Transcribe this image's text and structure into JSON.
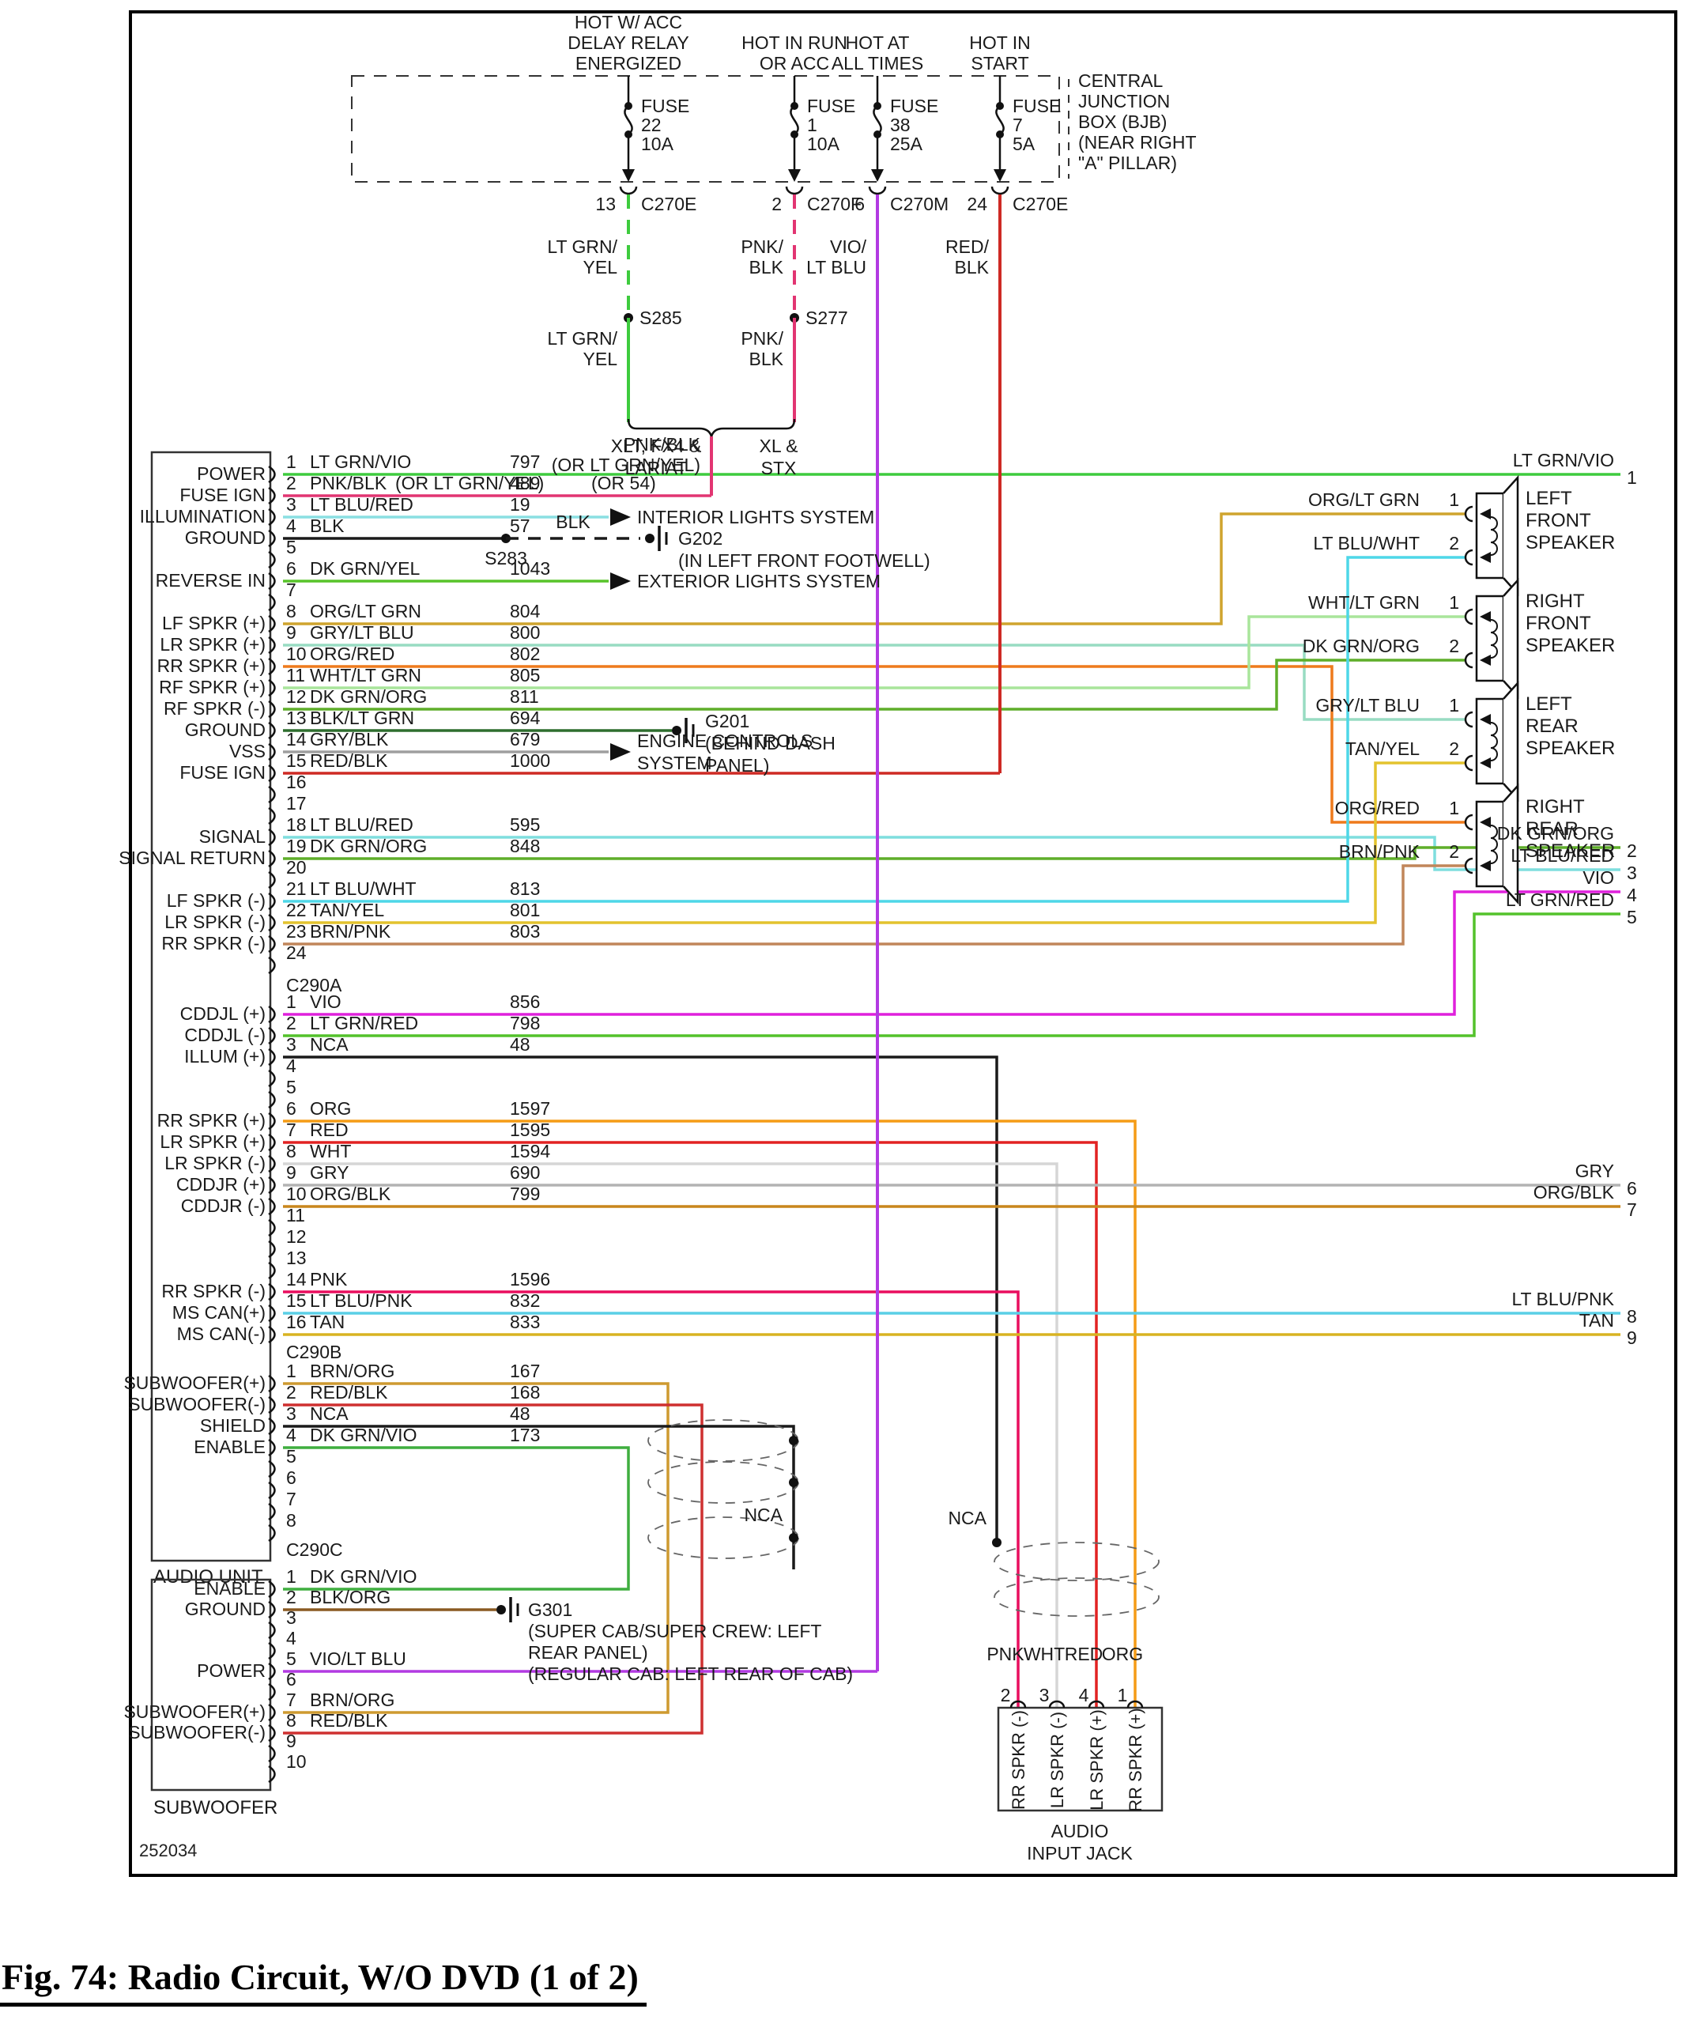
{
  "caption": "Fig. 74: Radio Circuit, W/O DVD (1 of 2)",
  "doc_number": "252034",
  "power_sources": [
    {
      "header": [
        "HOT W/ ACC",
        "DELAY RELAY",
        "ENERGIZED"
      ],
      "fuse": [
        "FUSE",
        "22",
        "10A"
      ],
      "pin": "13",
      "connector": "C270E",
      "wire_label": [
        "LT GRN/",
        "YEL"
      ],
      "splice": "S285",
      "branch_label": [
        "XLT, FX4 &",
        "LARIAT"
      ],
      "color": "#3ecb3e",
      "dashed": true
    },
    {
      "header": [
        "HOT IN RUN",
        "OR ACC"
      ],
      "fuse": [
        "FUSE",
        "1",
        "10A"
      ],
      "pin": "2",
      "connector": "C270F",
      "wire_label": [
        "PNK/",
        "BLK"
      ],
      "splice": "S277",
      "branch_label": [
        "XL &",
        "STX"
      ],
      "color": "#e23572",
      "dashed": true
    },
    {
      "header": [
        "HOT AT",
        "ALL TIMES"
      ],
      "fuse": [
        "FUSE",
        "38",
        "25A"
      ],
      "pin": "6",
      "connector": "C270M",
      "wire_label": [
        "VIO/",
        "LT BLU"
      ],
      "color": "#b23ae2",
      "dashed": false
    },
    {
      "header": [
        "HOT IN",
        "START"
      ],
      "fuse": [
        "FUSE",
        "7",
        "5A"
      ],
      "pin": "24",
      "connector": "C270E",
      "wire_label": [
        "RED/",
        "BLK"
      ],
      "color": "#ce2a24",
      "dashed": false
    }
  ],
  "junction_box_label": [
    "CENTRAL",
    "JUNCTION",
    "BOX (BJB)",
    "(NEAR RIGHT",
    "\"A\" PILLAR)"
  ],
  "merged_wire_label": [
    "PNK/BLK",
    "(OR LT GRN/YEL)"
  ],
  "audio_unit": {
    "label": "AUDIO UNIT",
    "connectors": [
      {
        "name": "C290A",
        "pins": [
          {
            "n": "1",
            "label": "POWER",
            "wire": "LT GRN/VIO",
            "circuit": "797",
            "color": "#3ecb3e"
          },
          {
            "n": "2",
            "label": "FUSE IGN",
            "wire": "PNK/BLK",
            "wire_alt": "(OR LT GRN/YEL)",
            "circuit": "489",
            "circuit_alt": "(OR 54)",
            "color": "#e23572"
          },
          {
            "n": "3",
            "label": "ILLUMINATION",
            "wire": "LT BLU/RED",
            "circuit": "19",
            "color": "#8adfe2"
          },
          {
            "n": "4",
            "label": "GROUND",
            "wire": "BLK",
            "circuit": "57",
            "color": "#1a1a1a"
          },
          {
            "n": "5"
          },
          {
            "n": "6",
            "label": "REVERSE IN",
            "wire": "DK GRN/YEL",
            "circuit": "1043",
            "color": "#58c42a"
          },
          {
            "n": "7"
          },
          {
            "n": "8",
            "label": "LF SPKR (+)",
            "wire": "ORG/LT GRN",
            "circuit": "804",
            "color": "#cfa42e"
          },
          {
            "n": "9",
            "label": "LR SPKR (+)",
            "wire": "GRY/LT BLU",
            "circuit": "800",
            "color": "#98dcc2"
          },
          {
            "n": "10",
            "label": "RR SPKR (+)",
            "wire": "ORG/RED",
            "circuit": "802",
            "color": "#ee7a1c"
          },
          {
            "n": "11",
            "label": "RF SPKR (+)",
            "wire": "WHT/LT GRN",
            "circuit": "805",
            "color": "#a9e59b"
          },
          {
            "n": "12",
            "label": "RF SPKR (-)",
            "wire": "DK GRN/ORG",
            "circuit": "811",
            "color": "#5fae2a"
          },
          {
            "n": "13",
            "label": "GROUND",
            "wire": "BLK/LT GRN",
            "circuit": "694",
            "color": "#2e6e2e"
          },
          {
            "n": "14",
            "label": "VSS",
            "wire": "GRY/BLK",
            "circuit": "679",
            "color": "#9f9f9f"
          },
          {
            "n": "15",
            "label": "FUSE IGN",
            "wire": "RED/BLK",
            "circuit": "1000",
            "color": "#ce2a24"
          },
          {
            "n": "16"
          },
          {
            "n": "17"
          },
          {
            "n": "18",
            "label": "SIGNAL",
            "wire": "LT BLU/RED",
            "circuit": "595",
            "color": "#7fdede"
          },
          {
            "n": "19",
            "label": "SIGNAL RETURN",
            "wire": "DK GRN/ORG",
            "circuit": "848",
            "color": "#5fae2a"
          },
          {
            "n": "20"
          },
          {
            "n": "21",
            "label": "LF SPKR (-)",
            "wire": "LT BLU/WHT",
            "circuit": "813",
            "color": "#4ed7e8"
          },
          {
            "n": "22",
            "label": "LR SPKR (-)",
            "wire": "TAN/YEL",
            "circuit": "801",
            "color": "#e3c32e"
          },
          {
            "n": "23",
            "label": "RR SPKR (-)",
            "wire": "BRN/PNK",
            "circuit": "803",
            "color": "#c1865a"
          },
          {
            "n": "24"
          }
        ]
      },
      {
        "name": "C290B",
        "pins": [
          {
            "n": "1",
            "label": "CDDJL (+)",
            "wire": "VIO",
            "circuit": "856",
            "color": "#df21dc"
          },
          {
            "n": "2",
            "label": "CDDJL (-)",
            "wire": "LT GRN/RED",
            "circuit": "798",
            "color": "#53c22b"
          },
          {
            "n": "3",
            "label": "ILLUM (+)",
            "wire": "NCA",
            "circuit": "48",
            "color": "#1a1a1a"
          },
          {
            "n": "4"
          },
          {
            "n": "5"
          },
          {
            "n": "6",
            "label": "RR SPKR (+)",
            "wire": "ORG",
            "circuit": "1597",
            "color": "#f59c16"
          },
          {
            "n": "7",
            "label": "LR SPKR (+)",
            "wire": "RED",
            "circuit": "1595",
            "color": "#e22222"
          },
          {
            "n": "8",
            "label": "LR SPKR (-)",
            "wire": "WHT",
            "circuit": "1594",
            "color": "#d6d6d6"
          },
          {
            "n": "9",
            "label": "CDDJR (+)",
            "wire": "GRY",
            "circuit": "690",
            "color": "#b3b3b3"
          },
          {
            "n": "10",
            "label": "CDDJR (-)",
            "wire": "ORG/BLK",
            "circuit": "799",
            "color": "#c8861c"
          },
          {
            "n": "11"
          },
          {
            "n": "12"
          },
          {
            "n": "13"
          },
          {
            "n": "14",
            "label": "RR SPKR (-)",
            "wire": "PNK",
            "circuit": "1596",
            "color": "#e90e5e"
          },
          {
            "n": "15",
            "label": "MS CAN(+)",
            "wire": "LT BLU/PNK",
            "circuit": "832",
            "color": "#5acfe6"
          },
          {
            "n": "16",
            "label": "MS CAN(-)",
            "wire": "TAN",
            "circuit": "833",
            "color": "#d8b322"
          }
        ]
      },
      {
        "name": "C290C",
        "pins": [
          {
            "n": "1",
            "label": "SUBWOOFER(+)",
            "wire": "BRN/ORG",
            "circuit": "167",
            "color": "#ce9a30"
          },
          {
            "n": "2",
            "label": "SUBWOOFER(-)",
            "wire": "RED/BLK",
            "circuit": "168",
            "color": "#ce3030"
          },
          {
            "n": "3",
            "label": "SHIELD",
            "wire": "NCA",
            "circuit": "48",
            "color": "#1a1a1a"
          },
          {
            "n": "4",
            "label": "ENABLE",
            "wire": "DK GRN/VIO",
            "circuit": "173",
            "color": "#3fae3f"
          },
          {
            "n": "5"
          },
          {
            "n": "6"
          },
          {
            "n": "7"
          },
          {
            "n": "8"
          }
        ]
      }
    ]
  },
  "subwoofer": {
    "label": "SUBWOOFER",
    "pins": [
      {
        "n": "1",
        "label": "ENABLE",
        "wire": "DK GRN/VIO",
        "color": "#3fae3f"
      },
      {
        "n": "2",
        "label": "GROUND",
        "wire": "BLK/ORG",
        "color": "#8a5a22"
      },
      {
        "n": "3"
      },
      {
        "n": "4"
      },
      {
        "n": "5",
        "label": "POWER",
        "wire": "VIO/LT BLU",
        "color": "#b23ae2"
      },
      {
        "n": "6"
      },
      {
        "n": "7",
        "label": "SUBWOOFER(+)",
        "wire": "BRN/ORG",
        "color": "#ce9a30"
      },
      {
        "n": "8",
        "label": "SUBWOOFER(-)",
        "wire": "RED/BLK",
        "color": "#ce3030"
      },
      {
        "n": "9"
      },
      {
        "n": "10"
      }
    ]
  },
  "speakers": [
    {
      "label": [
        "LEFT",
        "FRONT",
        "SPEAKER"
      ],
      "pins": [
        {
          "n": "1",
          "wire": "ORG/LT GRN"
        },
        {
          "n": "2",
          "wire": "LT BLU/WHT"
        }
      ]
    },
    {
      "label": [
        "RIGHT",
        "FRONT",
        "SPEAKER"
      ],
      "pins": [
        {
          "n": "1",
          "wire": "WHT/LT GRN"
        },
        {
          "n": "2",
          "wire": "DK GRN/ORG"
        }
      ]
    },
    {
      "label": [
        "LEFT",
        "REAR",
        "SPEAKER"
      ],
      "pins": [
        {
          "n": "1",
          "wire": "GRY/LT BLU"
        },
        {
          "n": "2",
          "wire": "TAN/YEL"
        }
      ]
    },
    {
      "label": [
        "RIGHT",
        "REAR",
        "SPEAKER"
      ],
      "pins": [
        {
          "n": "1",
          "wire": "ORG/RED"
        },
        {
          "n": "2",
          "wire": "BRN/PNK"
        }
      ]
    }
  ],
  "right_exits": [
    {
      "n": "1",
      "wire": "LT GRN/VIO"
    },
    {
      "n": "2",
      "wire": "DK GRN/ORG"
    },
    {
      "n": "3",
      "wire": "LT BLU/RED"
    },
    {
      "n": "4",
      "wire": "VIO"
    },
    {
      "n": "5",
      "wire": "LT GRN/RED"
    },
    {
      "n": "6",
      "wire": "GRY"
    },
    {
      "n": "7",
      "wire": "ORG/BLK"
    },
    {
      "n": "8",
      "wire": "LT BLU/PNK"
    },
    {
      "n": "9",
      "wire": "TAN"
    }
  ],
  "grounds": {
    "s283": "S283",
    "s283_wire": "BLK",
    "g202": [
      "G202",
      "(IN LEFT FRONT FOOTWELL)"
    ],
    "g201": [
      "G201",
      "(BEHIND DASH",
      "PANEL)"
    ],
    "g301": [
      "G301",
      "(SUPER CAB/SUPER CREW: LEFT",
      "REAR PANEL)",
      "(REGULAR CAB: LEFT REAR OF CAB)"
    ]
  },
  "systems": {
    "interior": "INTERIOR LIGHTS SYSTEM",
    "exterior": "EXTERIOR LIGHTS SYSTEM",
    "engine": [
      "ENGINE CONTROLS",
      "SYSTEM"
    ]
  },
  "audio_input_jack": {
    "label": [
      "AUDIO",
      "INPUT JACK"
    ],
    "pins": [
      {
        "n": "2",
        "wire": "PNK",
        "function": "RR SPKR (-)"
      },
      {
        "n": "3",
        "wire": "WHT",
        "function": "LR SPKR (-)"
      },
      {
        "n": "4",
        "wire": "RED",
        "function": "LR SPKR (+)"
      },
      {
        "n": "1",
        "wire": "ORG",
        "function": "RR SPKR (+)"
      }
    ]
  },
  "shield_label": "NCA"
}
